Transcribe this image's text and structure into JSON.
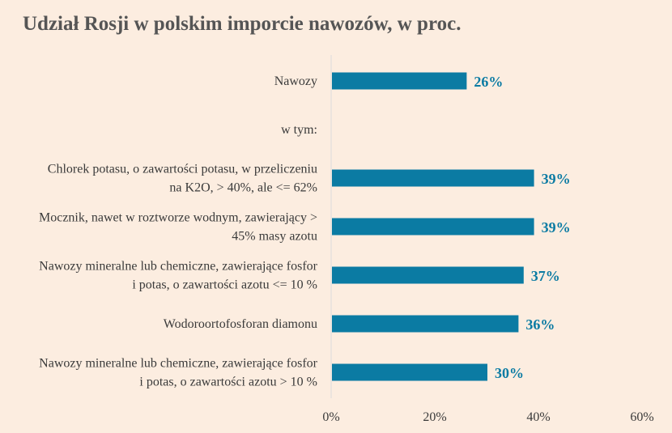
{
  "chart_data": {
    "type": "bar",
    "orientation": "horizontal",
    "title": "Udział Rosji w polskim imporcie nawozów, w proc.",
    "categories": [
      [
        "Nawozy"
      ],
      [
        "w tym:"
      ],
      [
        "Chlorek potasu, o zawartości potasu, w przeliczeniu",
        "na K2O, > 40%, ale <= 62%"
      ],
      [
        "Mocznik, nawet w roztworze wodnym, zawierający >",
        "45% masy azotu"
      ],
      [
        "Nawozy mineralne lub chemiczne, zawierające fosfor",
        "i potas, o zawartości azotu <= 10 %"
      ],
      [
        "Wodoroortofosforan diamonu"
      ],
      [
        "Nawozy mineralne lub chemiczne, zawierające fosfor",
        "i potas, o zawartości azotu > 10 %"
      ]
    ],
    "values": [
      26,
      null,
      39,
      39,
      37,
      36,
      30
    ],
    "data_labels": [
      "26%",
      "",
      "39%",
      "39%",
      "37%",
      "36%",
      "30%"
    ],
    "x_ticks": [
      "0%",
      "20%",
      "40%",
      "60%"
    ],
    "xlim": [
      0,
      60
    ],
    "bar_color": "#0b7ba3",
    "label_color": "#0b7ba3",
    "grid": false
  }
}
